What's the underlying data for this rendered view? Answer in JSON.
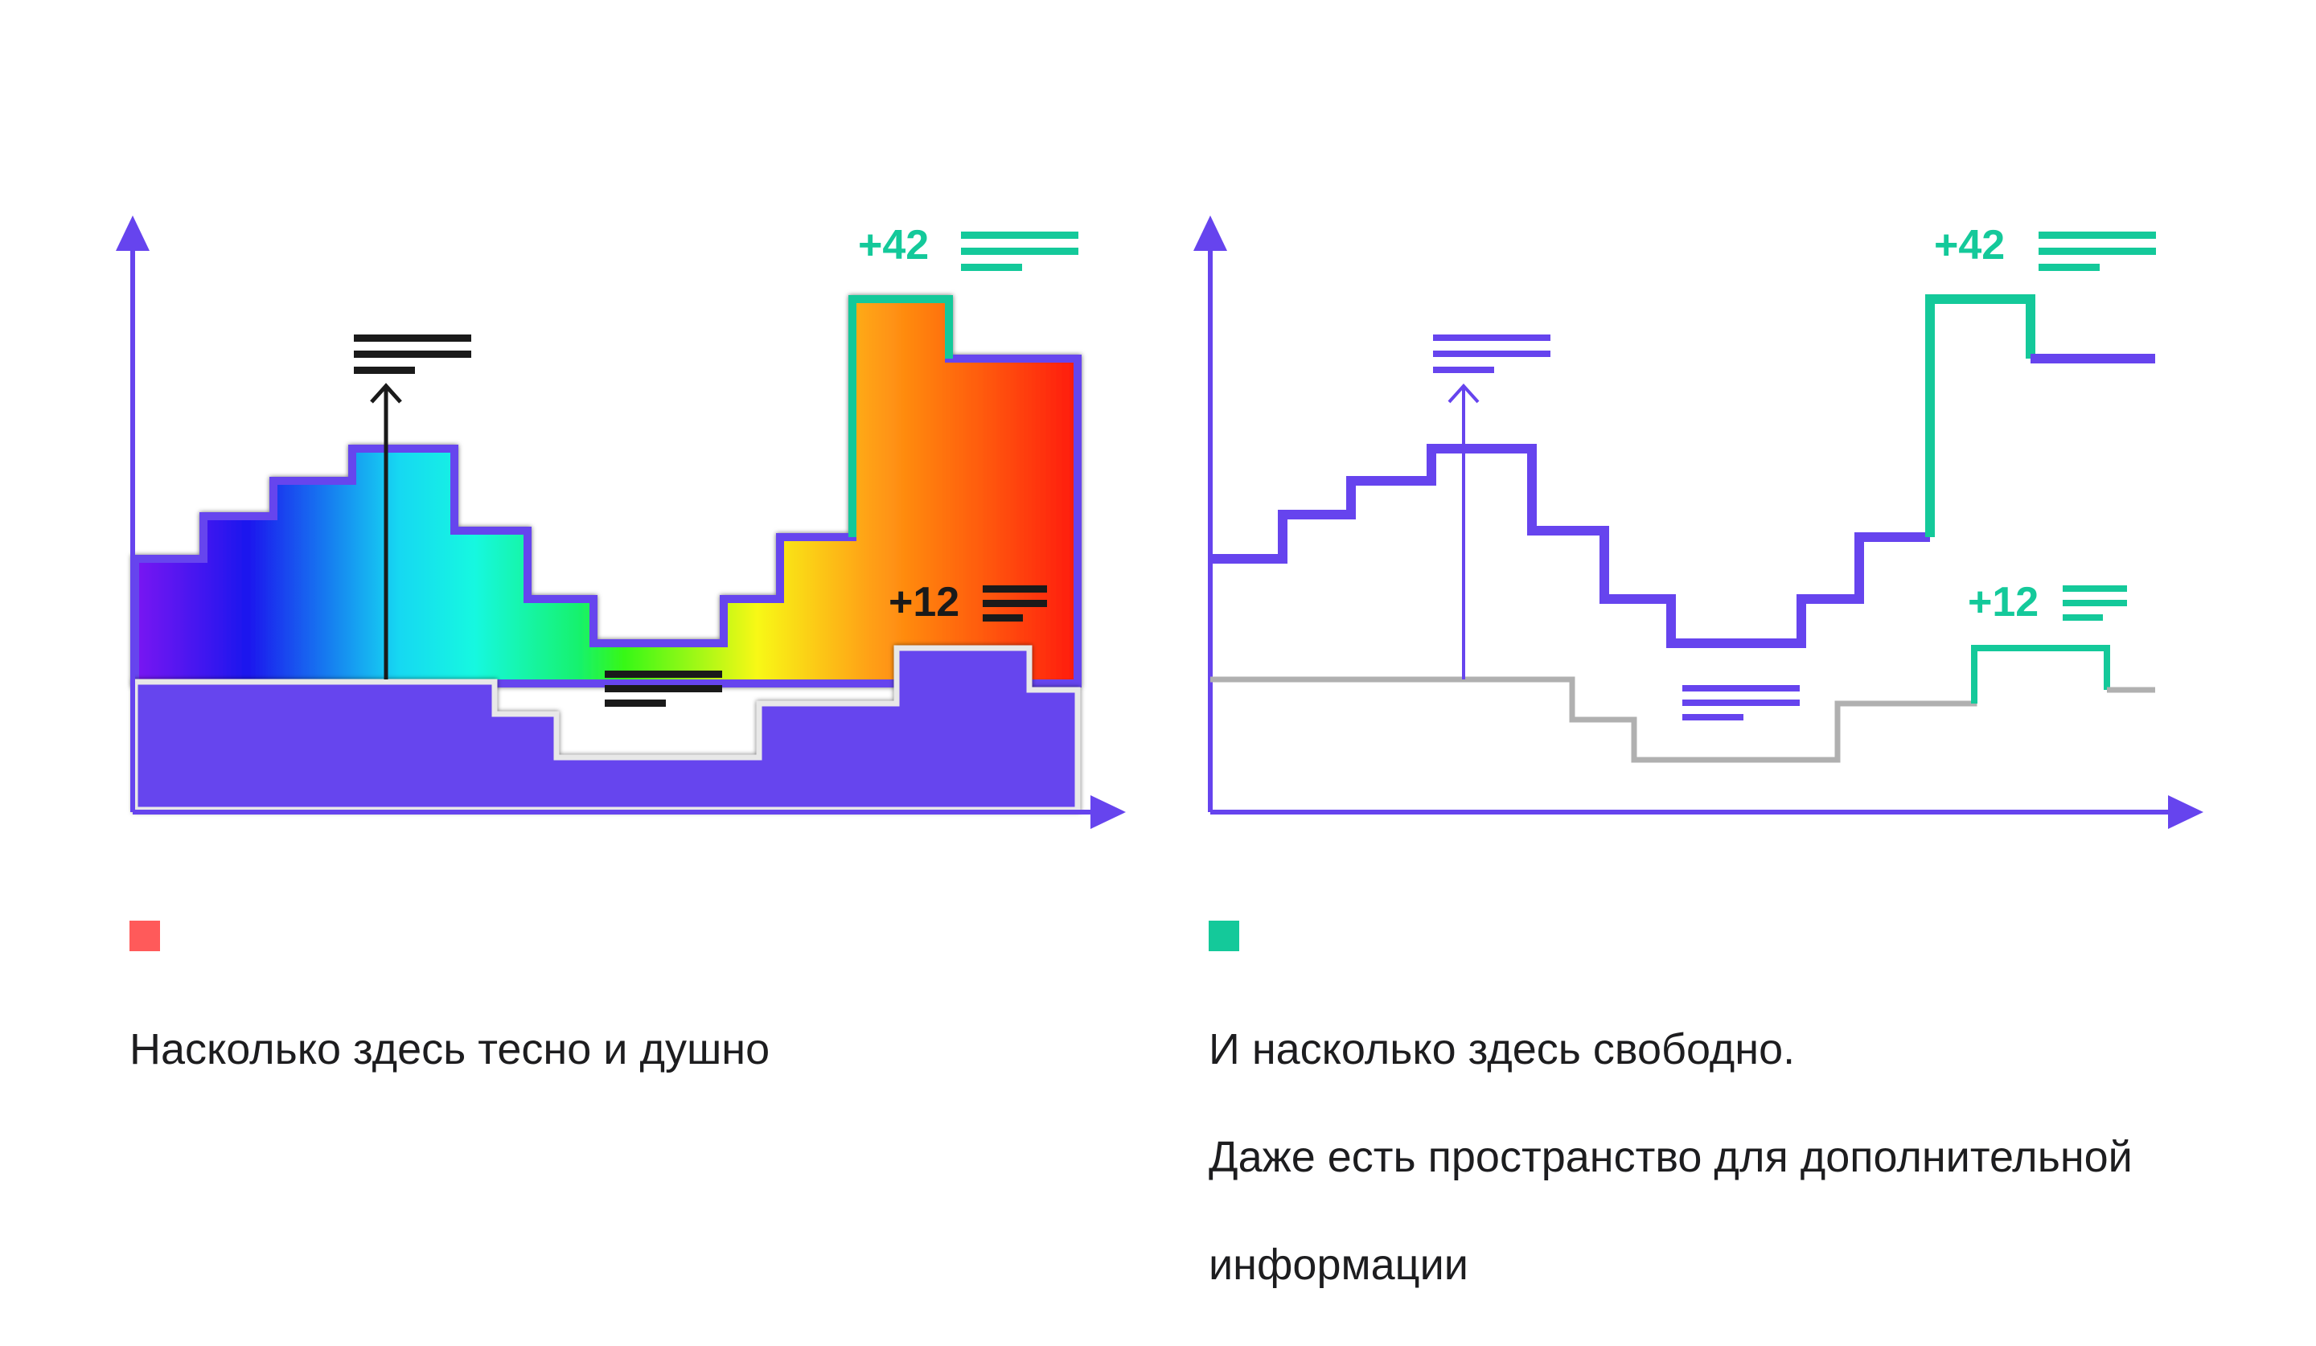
{
  "colors": {
    "axis": "#6644EE",
    "accent": "#14C99A",
    "gray": "#B0B0B0",
    "dark": "#1A1A1A",
    "bad": "#FF5A5A",
    "good": "#14C99A"
  },
  "left_panel": {
    "badge_top": "+42",
    "badge_bottom": "+12",
    "legend_color": "#FF5A5A",
    "caption": [
      "Насколько здесь тесно и душно"
    ]
  },
  "right_panel": {
    "badge_top": "+42",
    "badge_bottom": "+12",
    "legend_color": "#14C99A",
    "caption": [
      "И насколько здесь свободно.",
      "Даже есть пространство для дополнительной",
      "информации"
    ]
  },
  "chart_data": {
    "type": "line",
    "steps": {
      "upper": [
        6,
        7,
        8,
        9,
        9,
        7,
        6,
        5,
        5,
        6,
        7,
        12,
        12,
        11,
        11
      ],
      "lower": [
        4,
        4,
        4,
        4,
        4,
        4,
        3.5,
        3,
        3,
        3,
        3.5,
        3.5,
        4.5,
        4.5,
        3.8
      ]
    }
  }
}
